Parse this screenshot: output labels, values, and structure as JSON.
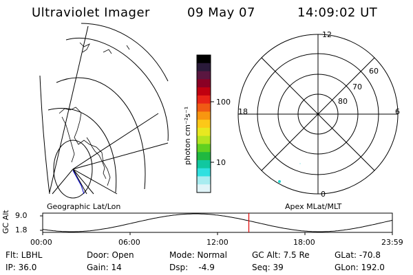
{
  "header": {
    "instrument": "Ultraviolet Imager",
    "date": "09 May 07",
    "time": "14:09:02 UT"
  },
  "colorbar": {
    "unit_label": "photon cm⁻²s⁻¹",
    "ticks": [
      "100",
      "10"
    ],
    "colors": [
      "#000000",
      "#2a1a3a",
      "#5a1640",
      "#8a0024",
      "#c00010",
      "#e82418",
      "#f05a14",
      "#f89610",
      "#fcc818",
      "#e8e820",
      "#b4e420",
      "#60d020",
      "#20b840",
      "#10c8a0",
      "#30e0e0",
      "#a8ecf0",
      "#e0f4f8"
    ]
  },
  "left_panel": {
    "caption": "Geographic Lat/Lon"
  },
  "polar_plot": {
    "caption": "Apex MLat/MLT",
    "mlt_labels": {
      "top": "12",
      "left": "18",
      "right": "6",
      "bottom": "0"
    },
    "lat_labels": [
      "60",
      "70",
      "80"
    ]
  },
  "timeline": {
    "axis_label": "GC Alt",
    "y_ticks": [
      "9.0",
      "1.8"
    ],
    "x_ticks": [
      "00:00",
      "06:00",
      "12:00",
      "18:00",
      "23:59"
    ],
    "current_hour": 14.15,
    "marker_color": "#e00000"
  },
  "status": {
    "row1": {
      "flt": "Flt: LBHL",
      "door": "Door: Open",
      "mode": "Mode: Normal",
      "gcalt": "GC Alt: 7.5 Re",
      "glat": "GLat: -70.8"
    },
    "row2": {
      "ip": "IP: 36.0",
      "gain": "Gain: 14",
      "dsp": "Dsp:    -4.9",
      "seq": "Seq: 39",
      "glon": "GLon: 192.0"
    }
  }
}
